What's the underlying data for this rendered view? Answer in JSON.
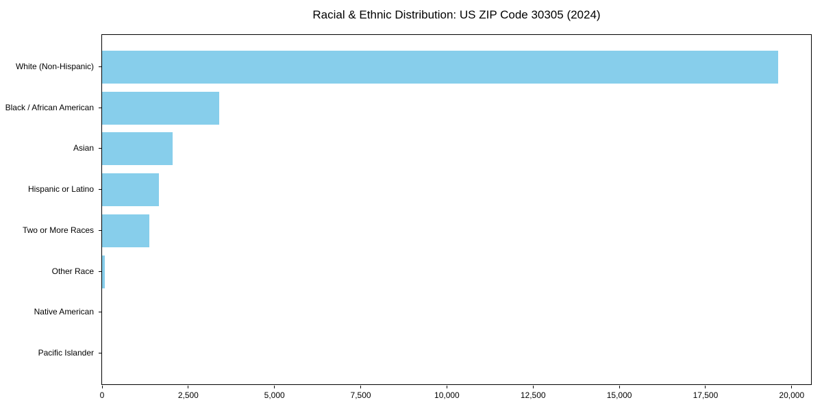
{
  "title": "Racial & Ethnic Distribution: US ZIP Code 30305 (2024)",
  "chart_data": {
    "type": "bar",
    "orientation": "horizontal",
    "title": "Racial & Ethnic Distribution: US ZIP Code 30305 (2024)",
    "categories": [
      "White (Non-Hispanic)",
      "Black / African American",
      "Asian",
      "Hispanic or Latino",
      "Two or More Races",
      "Other Race",
      "Native American",
      "Pacific Islander"
    ],
    "values": [
      19600,
      3400,
      2050,
      1650,
      1370,
      80,
      0,
      0
    ],
    "xlabel": "",
    "ylabel": "",
    "xlim": [
      0,
      20600
    ],
    "xticks": [
      {
        "value": 0,
        "label": "0"
      },
      {
        "value": 2500,
        "label": "2,500"
      },
      {
        "value": 5000,
        "label": "5,000"
      },
      {
        "value": 7500,
        "label": "7,500"
      },
      {
        "value": 10000,
        "label": "10,000"
      },
      {
        "value": 12500,
        "label": "12,500"
      },
      {
        "value": 15000,
        "label": "15,000"
      },
      {
        "value": 17500,
        "label": "17,500"
      },
      {
        "value": 20000,
        "label": "20,000"
      }
    ],
    "grid": false,
    "legend": null,
    "colors": {
      "bar_fill": "#87CEEB",
      "axis": "#000000",
      "text": "#000000",
      "background": "#FFFFFF"
    }
  }
}
